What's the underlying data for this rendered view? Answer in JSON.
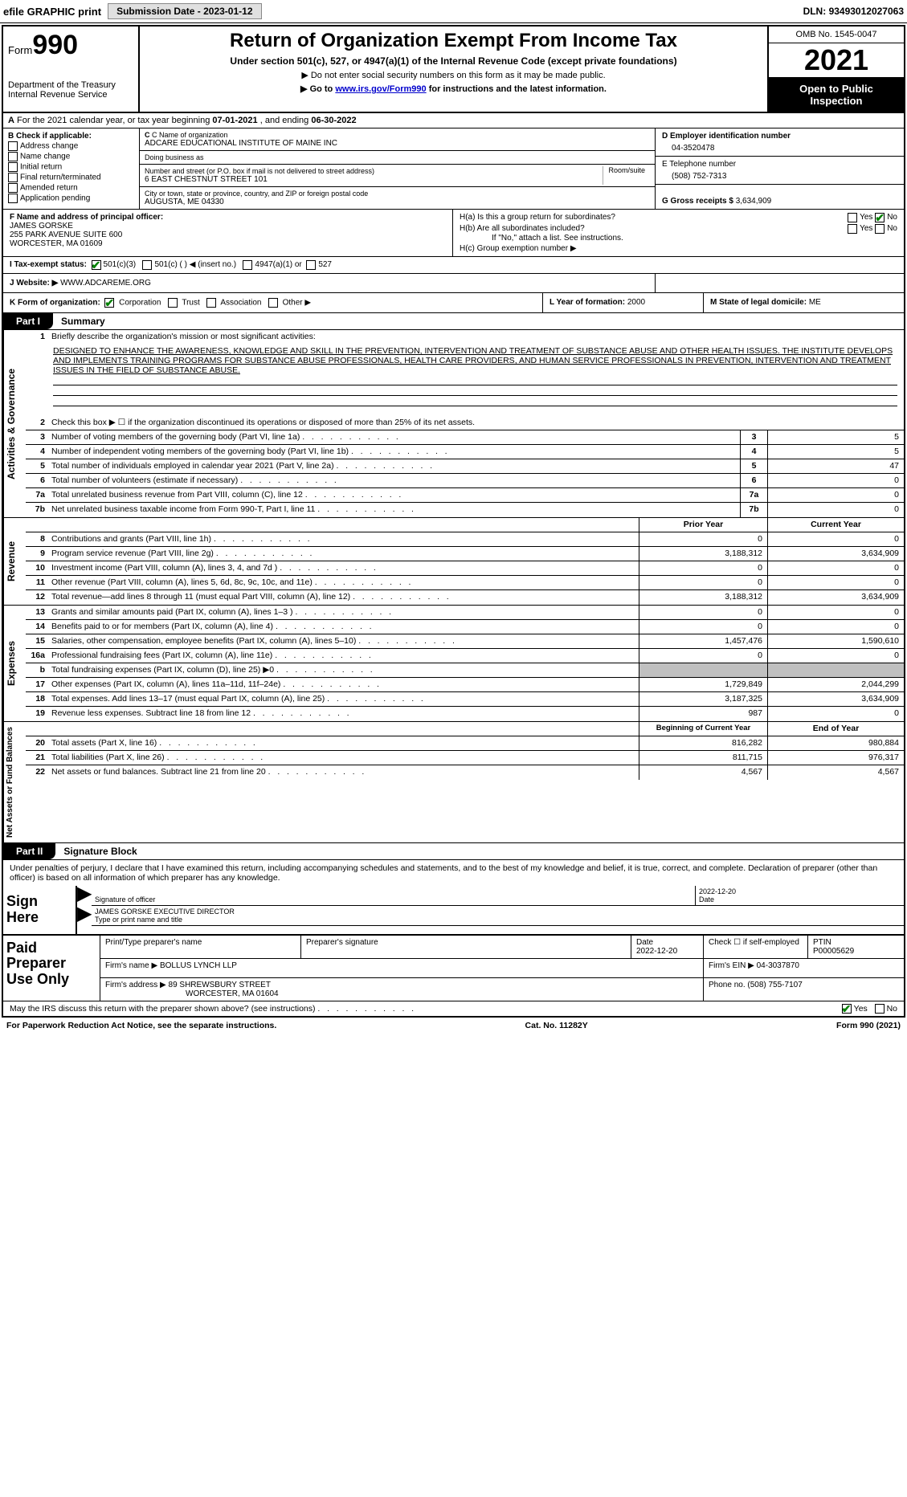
{
  "topbar": {
    "efile": "efile GRAPHIC print",
    "subdate_label": "Submission Date - ",
    "subdate": "2023-01-12",
    "dln_label": "DLN: ",
    "dln": "93493012027063"
  },
  "header": {
    "form_label": "Form",
    "form_no": "990",
    "dept": "Department of the Treasury",
    "irs": "Internal Revenue Service",
    "title": "Return of Organization Exempt From Income Tax",
    "sub": "Under section 501(c), 527, or 4947(a)(1) of the Internal Revenue Code (except private foundations)",
    "note1": "▶ Do not enter social security numbers on this form as it may be made public.",
    "note2_pre": "▶ Go to ",
    "note2_link": "www.irs.gov/Form990",
    "note2_post": " for instructions and the latest information.",
    "omb": "OMB No. 1545-0047",
    "year": "2021",
    "open": "Open to Public Inspection"
  },
  "row_a": {
    "prefix": "A",
    "text": " For the 2021 calendar year, or tax year beginning ",
    "begin": "07-01-2021",
    "mid": " , and ending ",
    "end": "06-30-2022"
  },
  "col_b": {
    "title": "B Check if applicable:",
    "items": [
      "Address change",
      "Name change",
      "Initial return",
      "Final return/terminated",
      "Amended return",
      "Application pending"
    ]
  },
  "col_c": {
    "name_label": "C Name of organization",
    "name": "ADCARE EDUCATIONAL INSTITUTE OF MAINE INC",
    "dba_label": "Doing business as",
    "dba": "",
    "street_label": "Number and street (or P.O. box if mail is not delivered to street address)",
    "street": "6 EAST CHESTNUT STREET 101",
    "room_label": "Room/suite",
    "city_label": "City or town, state or province, country, and ZIP or foreign postal code",
    "city": "AUGUSTA, ME  04330"
  },
  "col_de": {
    "d_label": "D Employer identification number",
    "ein": "04-3520478",
    "e_label": "E Telephone number",
    "phone": "(508) 752-7313",
    "g_label": "G Gross receipts $ ",
    "gross": "3,634,909"
  },
  "block_fh": {
    "f_label": "F Name and address of principal officer:",
    "officer": "JAMES GORSKE",
    "addr1": "255 PARK AVENUE SUITE 600",
    "addr2": "WORCESTER, MA  01609",
    "ha": "H(a)  Is this a group return for subordinates?",
    "hb": "H(b)  Are all subordinates included?",
    "hb_note": "If \"No,\" attach a list. See instructions.",
    "hc": "H(c)  Group exemption number ▶",
    "yes": "Yes",
    "no": "No"
  },
  "row_i": {
    "label": "I  Tax-exempt status:",
    "o1": "501(c)(3)",
    "o2": "501(c) (  ) ◀ (insert no.)",
    "o3": "4947(a)(1) or",
    "o4": "527"
  },
  "row_j": {
    "label": "J  Website: ▶ ",
    "site": "WWW.ADCAREME.ORG"
  },
  "row_k": {
    "label": "K Form of organization:",
    "opts": [
      "Corporation",
      "Trust",
      "Association",
      "Other ▶"
    ],
    "l_label": "L Year of formation: ",
    "l_val": "2000",
    "m_label": "M State of legal domicile: ",
    "m_val": "ME"
  },
  "part1": {
    "tab": "Part I",
    "title": "Summary"
  },
  "sections": {
    "s1": {
      "label": "Activities & Governance"
    },
    "s2": {
      "label": "Revenue"
    },
    "s3": {
      "label": "Expenses"
    },
    "s4": {
      "label": "Net Assets or Fund Balances"
    }
  },
  "mission": {
    "num": "1",
    "label": "Briefly describe the organization's mission or most significant activities:",
    "text": "DESIGNED TO ENHANCE THE AWARENESS, KNOWLEDGE AND SKILL IN THE PREVENTION, INTERVENTION AND TREATMENT OF SUBSTANCE ABUSE AND OTHER HEALTH ISSUES. THE INSTITUTE DEVELOPS AND IMPLEMENTS TRAINING PROGRAMS FOR SUBSTANCE ABUSE PROFESSIONALS, HEALTH CARE PROVIDERS, AND HUMAN SERVICE PROFESSIONALS IN PREVENTION, INTERVENTION AND TREATMENT ISSUES IN THE FIELD OF SUBSTANCE ABUSE."
  },
  "gov_lines": [
    {
      "n": "2",
      "t": "Check this box ▶ ☐  if the organization discontinued its operations or disposed of more than 25% of its net assets."
    },
    {
      "n": "3",
      "t": "Number of voting members of the governing body (Part VI, line 1a)",
      "b": "3",
      "v": "5"
    },
    {
      "n": "4",
      "t": "Number of independent voting members of the governing body (Part VI, line 1b)",
      "b": "4",
      "v": "5"
    },
    {
      "n": "5",
      "t": "Total number of individuals employed in calendar year 2021 (Part V, line 2a)",
      "b": "5",
      "v": "47"
    },
    {
      "n": "6",
      "t": "Total number of volunteers (estimate if necessary)",
      "b": "6",
      "v": "0"
    },
    {
      "n": "7a",
      "t": "Total unrelated business revenue from Part VIII, column (C), line 12",
      "b": "7a",
      "v": "0"
    },
    {
      "n": "7b",
      "t": "Net unrelated business taxable income from Form 990-T, Part I, line 11",
      "b": "7b",
      "v": "0"
    }
  ],
  "rev_hdr": {
    "prior": "Prior Year",
    "curr": "Current Year"
  },
  "rev_lines": [
    {
      "n": "8",
      "t": "Contributions and grants (Part VIII, line 1h)",
      "p": "0",
      "c": "0"
    },
    {
      "n": "9",
      "t": "Program service revenue (Part VIII, line 2g)",
      "p": "3,188,312",
      "c": "3,634,909"
    },
    {
      "n": "10",
      "t": "Investment income (Part VIII, column (A), lines 3, 4, and 7d )",
      "p": "0",
      "c": "0"
    },
    {
      "n": "11",
      "t": "Other revenue (Part VIII, column (A), lines 5, 6d, 8c, 9c, 10c, and 11e)",
      "p": "0",
      "c": "0"
    },
    {
      "n": "12",
      "t": "Total revenue—add lines 8 through 11 (must equal Part VIII, column (A), line 12)",
      "p": "3,188,312",
      "c": "3,634,909"
    }
  ],
  "exp_lines": [
    {
      "n": "13",
      "t": "Grants and similar amounts paid (Part IX, column (A), lines 1–3 )",
      "p": "0",
      "c": "0"
    },
    {
      "n": "14",
      "t": "Benefits paid to or for members (Part IX, column (A), line 4)",
      "p": "0",
      "c": "0"
    },
    {
      "n": "15",
      "t": "Salaries, other compensation, employee benefits (Part IX, column (A), lines 5–10)",
      "p": "1,457,476",
      "c": "1,590,610"
    },
    {
      "n": "16a",
      "t": "Professional fundraising fees (Part IX, column (A), line 11e)",
      "p": "0",
      "c": "0"
    },
    {
      "n": "b",
      "t": "Total fundraising expenses (Part IX, column (D), line 25) ▶0",
      "p": "",
      "c": "",
      "shaded": true
    },
    {
      "n": "17",
      "t": "Other expenses (Part IX, column (A), lines 11a–11d, 11f–24e)",
      "p": "1,729,849",
      "c": "2,044,299"
    },
    {
      "n": "18",
      "t": "Total expenses. Add lines 13–17 (must equal Part IX, column (A), line 25)",
      "p": "3,187,325",
      "c": "3,634,909"
    },
    {
      "n": "19",
      "t": "Revenue less expenses. Subtract line 18 from line 12",
      "p": "987",
      "c": "0"
    }
  ],
  "net_hdr": {
    "prior": "Beginning of Current Year",
    "curr": "End of Year"
  },
  "net_lines": [
    {
      "n": "20",
      "t": "Total assets (Part X, line 16)",
      "p": "816,282",
      "c": "980,884"
    },
    {
      "n": "21",
      "t": "Total liabilities (Part X, line 26)",
      "p": "811,715",
      "c": "976,317"
    },
    {
      "n": "22",
      "t": "Net assets or fund balances. Subtract line 21 from line 20",
      "p": "4,567",
      "c": "4,567"
    }
  ],
  "part2": {
    "tab": "Part II",
    "title": "Signature Block"
  },
  "sig": {
    "penalties": "Under penalties of perjury, I declare that I have examined this return, including accompanying schedules and statements, and to the best of my knowledge and belief, it is true, correct, and complete. Declaration of preparer (other than officer) is based on all information of which preparer has any knowledge.",
    "sign_here": "Sign Here",
    "sig_label": "Signature of officer",
    "date": "2022-12-20",
    "date_label": "Date",
    "officer": "JAMES GORSKE  EXECUTIVE DIRECTOR",
    "officer_label": "Type or print name and title"
  },
  "prep": {
    "label": "Paid Preparer Use Only",
    "h1": "Print/Type preparer's name",
    "h2": "Preparer's signature",
    "h3": "Date",
    "h3v": "2022-12-20",
    "h4": "Check ☐ if self-employed",
    "h5": "PTIN",
    "h5v": "P00005629",
    "firm_label": "Firm's name    ▶ ",
    "firm": "BOLLUS LYNCH LLP",
    "ein_label": "Firm's EIN ▶ ",
    "ein": "04-3037870",
    "addr_label": "Firm's address ▶ ",
    "addr1": "89 SHREWSBURY STREET",
    "addr2": "WORCESTER, MA  01604",
    "phone_label": "Phone no. ",
    "phone": "(508) 755-7107"
  },
  "footer": {
    "q": "May the IRS discuss this return with the preparer shown above? (see instructions)",
    "yes": "Yes",
    "no": "No",
    "pra": "For Paperwork Reduction Act Notice, see the separate instructions.",
    "cat": "Cat. No. 11282Y",
    "form": "Form 990 (2021)"
  }
}
